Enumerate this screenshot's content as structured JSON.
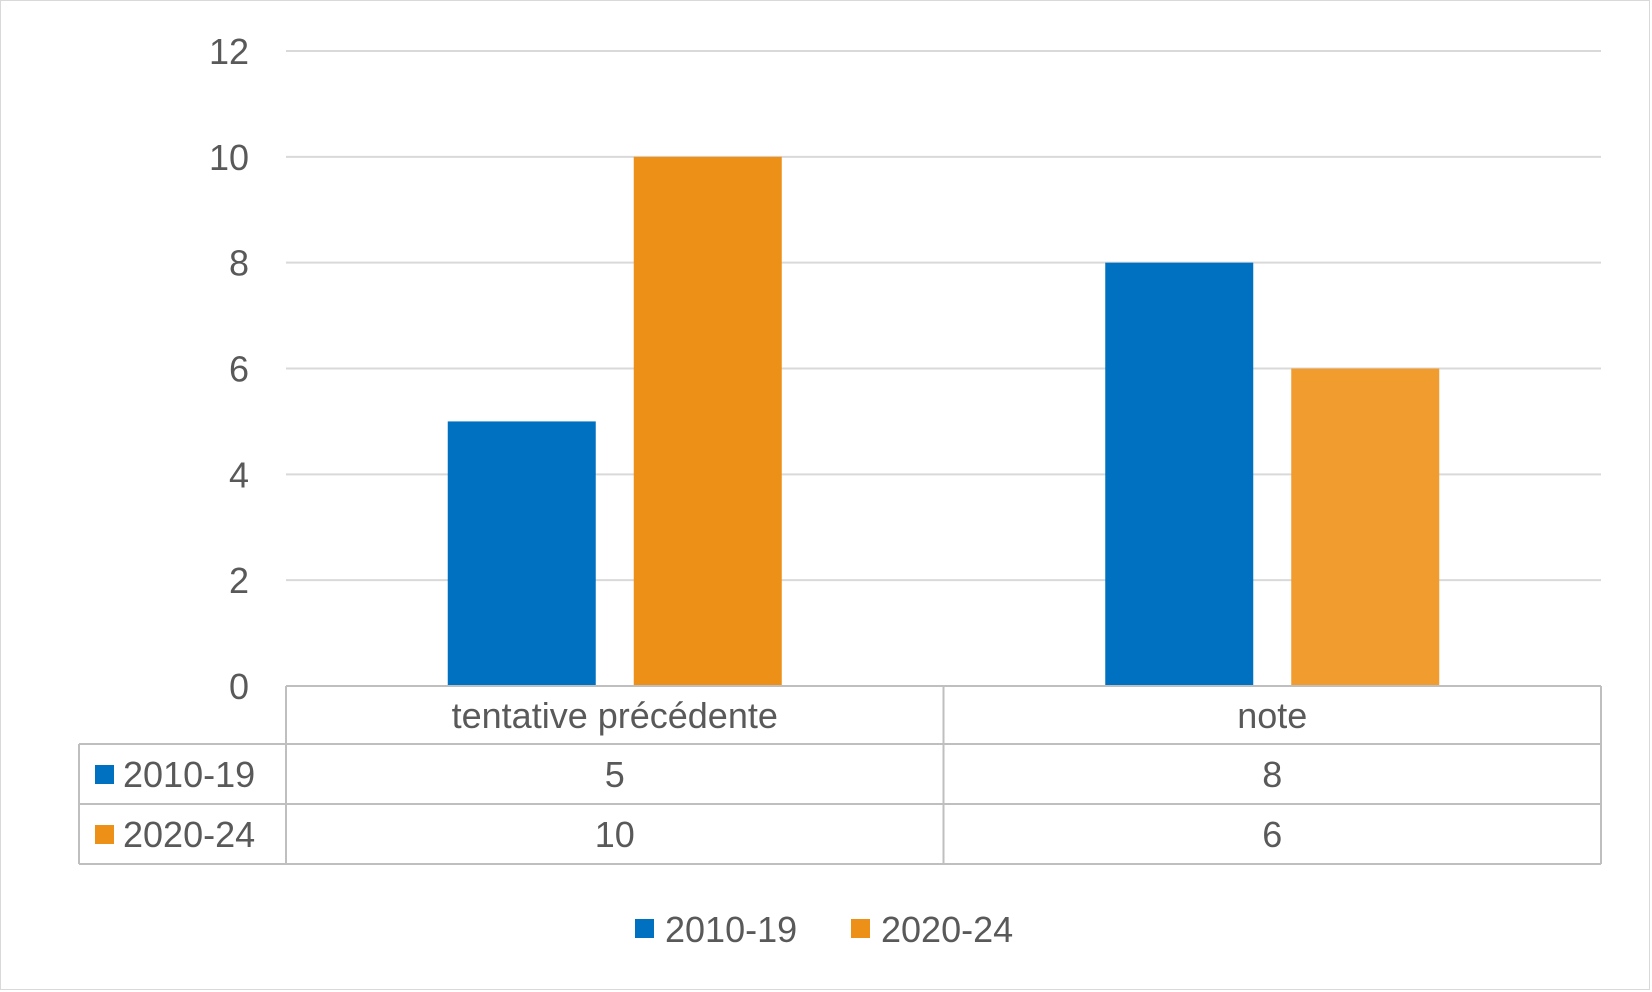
{
  "chart_data": {
    "type": "bar",
    "categories": [
      "tentative précédente",
      "note"
    ],
    "series": [
      {
        "name": "2010-19",
        "values": [
          5,
          8
        ],
        "color": "#0070C0"
      },
      {
        "name": "2020-24",
        "values": [
          10,
          6
        ],
        "color_by_category": [
          "#ED9017",
          "#F09C2E"
        ],
        "color": "#ED9017"
      }
    ],
    "ylim": [
      0,
      12
    ],
    "yticks": [
      "0",
      "2",
      "4",
      "6",
      "8",
      "10",
      "12"
    ],
    "grid": true,
    "data_table": true,
    "legend": {
      "placement": "bottom",
      "entries": [
        "2010-19",
        "2020-24"
      ]
    },
    "colors": {
      "gridline": "#D9D9D9",
      "text": "#595959",
      "border": "#BFBFBF"
    }
  }
}
